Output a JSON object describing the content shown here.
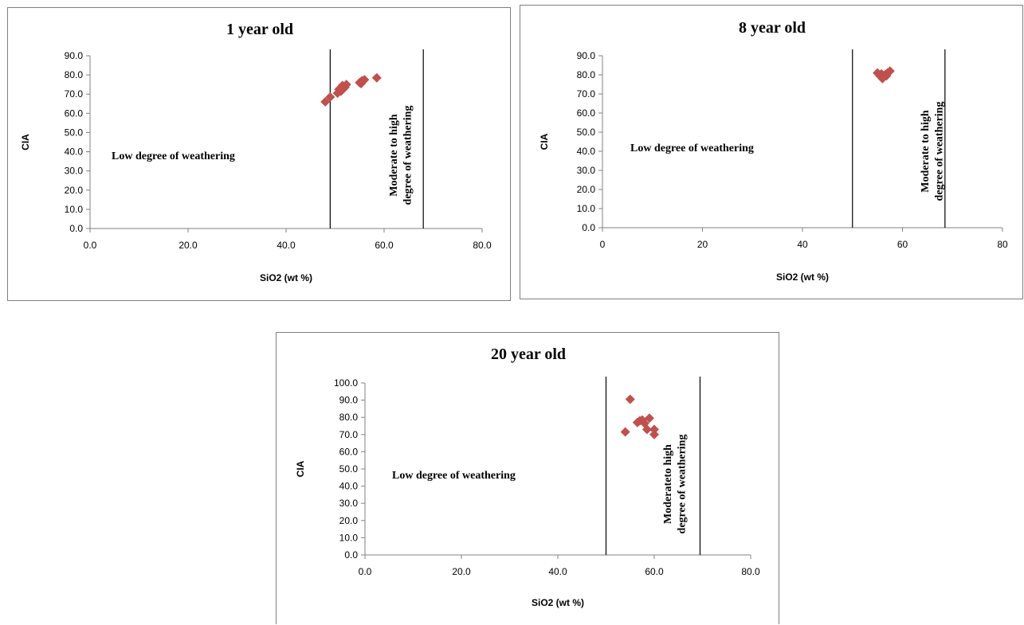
{
  "chart_data": [
    {
      "type": "scatter",
      "title": "1 year old",
      "xlabel": "SiO2 (wt %)",
      "ylabel": "CIA",
      "xlim": [
        0,
        80
      ],
      "ylim": [
        0,
        90
      ],
      "x_ticks": [
        "0.0",
        "20.0",
        "40.0",
        "60.0",
        "80.0"
      ],
      "y_ticks": [
        "0.0",
        "10.0",
        "20.0",
        "30.0",
        "40.0",
        "50.0",
        "60.0",
        "70.0",
        "80.0",
        "90.0"
      ],
      "vertical_lines_x": [
        49,
        68
      ],
      "annotation_low": "Low degree of weathering",
      "annotation_high": [
        "Moderate to high",
        "degree of weathering"
      ],
      "grid": false,
      "marker_color": "#c0504d",
      "series": [
        {
          "x": [
            48.0,
            49.0,
            50.5,
            51.0,
            51.5,
            52.0,
            52.3,
            51.2,
            50.8,
            55.0,
            55.5,
            56.0,
            55.3,
            58.5
          ],
          "y": [
            66.0,
            68.5,
            70.5,
            73.0,
            74.5,
            73.5,
            75.0,
            71.5,
            72.5,
            76.0,
            77.0,
            77.5,
            75.5,
            78.5
          ]
        }
      ]
    },
    {
      "type": "scatter",
      "title": "8 year old",
      "xlabel": "SiO2 (wt %)",
      "ylabel": "CIA",
      "xlim": [
        0,
        80
      ],
      "ylim": [
        0,
        90
      ],
      "x_ticks": [
        "0",
        "20",
        "40",
        "60",
        "80"
      ],
      "y_ticks": [
        "0.0",
        "10.0",
        "20.0",
        "30.0",
        "40.0",
        "50.0",
        "60.0",
        "70.0",
        "80.0",
        "90.0"
      ],
      "vertical_lines_x": [
        50,
        68.5
      ],
      "annotation_low": "Low degree of weathering",
      "annotation_high": [
        "Moderate to high",
        "degree of weathering"
      ],
      "grid": false,
      "marker_color": "#c0504d",
      "series": [
        {
          "x": [
            55.0,
            55.5,
            56.0,
            56.5,
            57.0,
            57.5,
            56.2,
            55.8,
            56.8
          ],
          "y": [
            81.0,
            79.5,
            78.0,
            80.0,
            81.0,
            82.0,
            79.0,
            80.5,
            79.5
          ]
        }
      ]
    },
    {
      "type": "scatter",
      "title": "20 year old",
      "xlabel": "SiO2 (wt %)",
      "ylabel": "CIA",
      "xlim": [
        0,
        80
      ],
      "ylim": [
        0,
        100
      ],
      "x_ticks": [
        "0.0",
        "20.0",
        "40.0",
        "60.0",
        "80.0"
      ],
      "y_ticks": [
        "0.0",
        "10.0",
        "20.0",
        "30.0",
        "40.0",
        "50.0",
        "60.0",
        "70.0",
        "80.0",
        "90.0",
        "100.0"
      ],
      "vertical_lines_x": [
        50,
        69.5
      ],
      "annotation_low": "Low degree of weathering",
      "annotation_high": [
        "Moderateto high",
        "degree of weathering"
      ],
      "grid": false,
      "marker_color": "#c0504d",
      "series": [
        {
          "x": [
            55.0,
            54.0,
            56.5,
            57.0,
            57.5,
            58.0,
            58.5,
            59.0,
            60.0,
            60.0
          ],
          "y": [
            90.5,
            71.5,
            77.0,
            78.0,
            78.5,
            76.5,
            73.0,
            79.5,
            73.0,
            70.0
          ]
        }
      ]
    }
  ]
}
